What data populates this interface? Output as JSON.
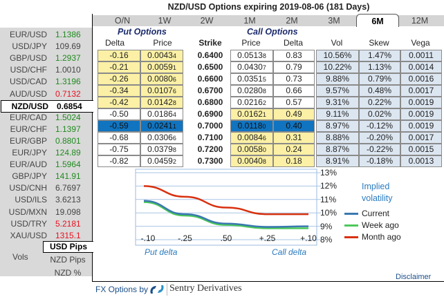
{
  "title": "NZD/USD Options expiring 2019-08-06 (181 Days)",
  "sidebar": {
    "pairs": [
      {
        "symbol": "EUR/USD",
        "price": "1.1386",
        "trend": "up"
      },
      {
        "symbol": "USD/JPY",
        "price": "109.69",
        "trend": "flat"
      },
      {
        "symbol": "GBP/USD",
        "price": "1.2937",
        "trend": "up"
      },
      {
        "symbol": "USD/CHF",
        "price": "1.0010",
        "trend": "flat"
      },
      {
        "symbol": "USD/CAD",
        "price": "1.3196",
        "trend": "up"
      },
      {
        "symbol": "AUD/USD",
        "price": "0.7132",
        "trend": "down"
      },
      {
        "symbol": "NZD/USD",
        "price": "0.6854",
        "trend": "selected"
      },
      {
        "symbol": "EUR/CAD",
        "price": "1.5024",
        "trend": "up"
      },
      {
        "symbol": "EUR/CHF",
        "price": "1.1397",
        "trend": "up"
      },
      {
        "symbol": "EUR/GBP",
        "price": "0.8801",
        "trend": "up"
      },
      {
        "symbol": "EUR/JPY",
        "price": "124.89",
        "trend": "up"
      },
      {
        "symbol": "EUR/AUD",
        "price": "1.5964",
        "trend": "up"
      },
      {
        "symbol": "GBP/JPY",
        "price": "141.91",
        "trend": "up"
      },
      {
        "symbol": "USD/CNH",
        "price": "6.7697",
        "trend": "flat"
      },
      {
        "symbol": "USD/ILS",
        "price": "3.6213",
        "trend": "flat"
      },
      {
        "symbol": "USD/MXN",
        "price": "19.098",
        "trend": "flat"
      },
      {
        "symbol": "USD/TRY",
        "price": "5.2181",
        "trend": "down"
      },
      {
        "symbol": "XAU/USD",
        "price": "1315.1",
        "trend": "down"
      }
    ],
    "vols_label": "Vols",
    "units": [
      {
        "label": "USD Pips",
        "selected": true
      },
      {
        "label": "NZD Pips",
        "selected": false
      },
      {
        "label": "NZD %",
        "selected": false
      }
    ]
  },
  "tabs": [
    {
      "label": "O/N"
    },
    {
      "label": "1W"
    },
    {
      "label": "2W"
    },
    {
      "label": "1M"
    },
    {
      "label": "2M"
    },
    {
      "label": "3M"
    },
    {
      "label": "6M",
      "active": true
    },
    {
      "label": "12M"
    }
  ],
  "table": {
    "put_header": "Put Options",
    "call_header": "Call Options",
    "columns": {
      "put_delta": "Delta",
      "put_price": "Price",
      "strike": "Strike",
      "call_price": "Price",
      "call_delta": "Delta",
      "vol": "Vol",
      "skew": "Skew",
      "vega": "Vega"
    },
    "rows": [
      {
        "put_delta": "-0.16",
        "put_price": "0.0043",
        "put_price_sub": "4",
        "strike": "0.6400",
        "call_price": "0.0513",
        "call_price_sub": "8",
        "call_delta": "0.83",
        "vol": "10.56%",
        "skew": "1.47%",
        "vega": "0.0011",
        "put_itm": false,
        "selected": false
      },
      {
        "put_delta": "-0.21",
        "put_price": "0.0059",
        "put_price_sub": "1",
        "strike": "0.6500",
        "call_price": "0.0430",
        "call_price_sub": "7",
        "call_delta": "0.79",
        "vol": "10.22%",
        "skew": "1.13%",
        "vega": "0.0014",
        "put_itm": false,
        "selected": false
      },
      {
        "put_delta": "-0.26",
        "put_price": "0.0080",
        "put_price_sub": "6",
        "strike": "0.6600",
        "call_price": "0.0351",
        "call_price_sub": "5",
        "call_delta": "0.73",
        "vol": "9.88%",
        "skew": "0.79%",
        "vega": "0.0016",
        "put_itm": false,
        "selected": false
      },
      {
        "put_delta": "-0.34",
        "put_price": "0.0107",
        "put_price_sub": "6",
        "strike": "0.6700",
        "call_price": "0.0280",
        "call_price_sub": "8",
        "call_delta": "0.66",
        "vol": "9.57%",
        "skew": "0.48%",
        "vega": "0.0017",
        "put_itm": false,
        "selected": false
      },
      {
        "put_delta": "-0.42",
        "put_price": "0.0142",
        "put_price_sub": "8",
        "strike": "0.6800",
        "call_price": "0.0216",
        "call_price_sub": "2",
        "call_delta": "0.57",
        "vol": "9.31%",
        "skew": "0.22%",
        "vega": "0.0019",
        "put_itm": false,
        "selected": false
      },
      {
        "put_delta": "-0.50",
        "put_price": "0.0186",
        "put_price_sub": "4",
        "strike": "0.6900",
        "call_price": "0.0162",
        "call_price_sub": "1",
        "call_delta": "0.49",
        "vol": "9.11%",
        "skew": "0.02%",
        "vega": "0.0019",
        "put_itm": true,
        "selected": false
      },
      {
        "put_delta": "-0.59",
        "put_price": "0.0241",
        "put_price_sub": "1",
        "strike": "0.7000",
        "call_price": "0.0118",
        "call_price_sub": "0",
        "call_delta": "0.40",
        "vol": "8.97%",
        "skew": "-0.12%",
        "vega": "0.0019",
        "put_itm": true,
        "selected": true
      },
      {
        "put_delta": "-0.68",
        "put_price": "0.0306",
        "put_price_sub": "6",
        "strike": "0.7100",
        "call_price": "0.0084",
        "call_price_sub": "6",
        "call_delta": "0.31",
        "vol": "8.88%",
        "skew": "-0.20%",
        "vega": "0.0017",
        "put_itm": true,
        "selected": false
      },
      {
        "put_delta": "-0.75",
        "put_price": "0.0379",
        "put_price_sub": "8",
        "strike": "0.7200",
        "call_price": "0.0058",
        "call_price_sub": "0",
        "call_delta": "0.24",
        "vol": "8.87%",
        "skew": "-0.22%",
        "vega": "0.0015",
        "put_itm": true,
        "selected": false
      },
      {
        "put_delta": "-0.82",
        "put_price": "0.0459",
        "put_price_sub": "2",
        "strike": "0.7300",
        "call_price": "0.0040",
        "call_price_sub": "8",
        "call_delta": "0.18",
        "vol": "8.91%",
        "skew": "-0.18%",
        "vega": "0.0013",
        "put_itm": true,
        "selected": false
      }
    ]
  },
  "chart_data": {
    "type": "line",
    "title": "Implied volatility",
    "x": [
      "-.10",
      "-.25",
      ".50",
      "+.25",
      "+.10"
    ],
    "xlabel_left": "Put delta",
    "xlabel_right": "Call delta",
    "ylim": [
      8,
      13
    ],
    "yticks": [
      "13%",
      "12%",
      "11%",
      "10%",
      "9%",
      "8%"
    ],
    "series": [
      {
        "name": "Current",
        "color": "#3a78b0",
        "values": [
          10.9,
          9.9,
          9.2,
          8.95,
          9.0
        ]
      },
      {
        "name": "Week ago",
        "color": "#4cc85a",
        "values": [
          10.8,
          9.8,
          9.1,
          8.85,
          8.85
        ]
      },
      {
        "name": "Month ago",
        "color": "#d8300e",
        "values": [
          12.0,
          11.2,
          10.4,
          9.9,
          9.9
        ]
      }
    ]
  },
  "disclaimer": "Disclaimer",
  "footer": {
    "prefix": "FX Options by",
    "brand": "Sentry Derivatives"
  }
}
